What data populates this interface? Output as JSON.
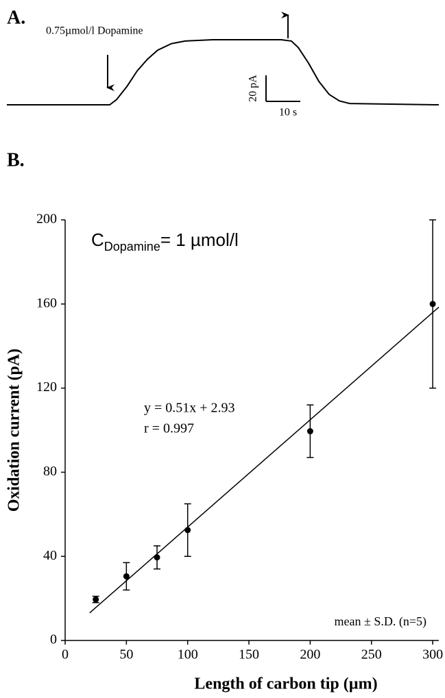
{
  "chart_data": [
    {
      "type": "line",
      "panel_label": "A.",
      "x": [
        0,
        30,
        32,
        35,
        38,
        41,
        44,
        48,
        52,
        60,
        70,
        80,
        83,
        85,
        88,
        91,
        94,
        97,
        100,
        126
      ],
      "series": [
        {
          "name": "trace",
          "color": "#000000",
          "values": [
            0,
            0,
            4,
            14,
            26,
            35,
            42,
            47,
            49,
            50,
            50,
            50,
            49,
            44,
            32,
            18,
            8,
            3,
            1,
            0
          ]
        }
      ],
      "annotations": [
        {
          "text": "0.75µmol/l Dopamine",
          "x": 29.4,
          "direction": "down"
        },
        {
          "x": 82,
          "direction": "up"
        }
      ],
      "scale_bar": {
        "x_value": 10,
        "x_label": "10 s",
        "y_value": 20,
        "y_label": "20 pA"
      }
    },
    {
      "type": "scatter",
      "panel_label": "B.",
      "x_label": "Length of carbon tip (µm)",
      "y_label": "Oxidation current (pA)",
      "x": [
        25,
        50,
        75,
        100,
        200,
        300
      ],
      "series": [
        {
          "name": "mean",
          "color": "#000000",
          "values": [
            19.5,
            30.5,
            39.5,
            52.5,
            99.5,
            160
          ],
          "errors": [
            1.5,
            6.5,
            5.5,
            12.5,
            12.5,
            40
          ]
        }
      ],
      "fit_line": {
        "x": [
          20,
          305
        ],
        "y": [
          13.1,
          158.5
        ]
      },
      "xlim": [
        0,
        305
      ],
      "ylim": [
        0,
        200
      ],
      "xticks": [
        0,
        50,
        100,
        150,
        200,
        250,
        300
      ],
      "yticks": [
        0,
        40,
        80,
        120,
        160,
        200
      ],
      "concentration": {
        "symbol": "C",
        "subscript": "Dopamine",
        "text": "= 1 µmol/l"
      },
      "equation": [
        "y = 0.51x + 2.93",
        "r = 0.997"
      ],
      "note": "mean ± S.D. (n=5)"
    }
  ]
}
